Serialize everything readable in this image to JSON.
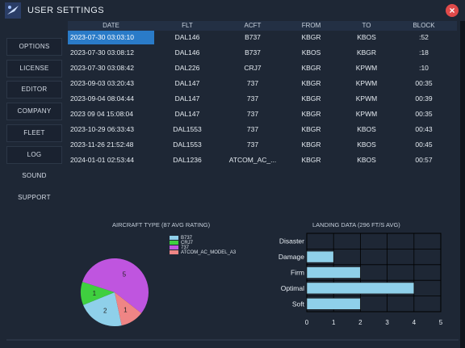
{
  "window": {
    "title": "USER SETTINGS",
    "close_label": "×"
  },
  "sidebar": {
    "items": [
      {
        "label": "OPTIONS"
      },
      {
        "label": "LICENSE"
      },
      {
        "label": "EDITOR"
      },
      {
        "label": "COMPANY"
      },
      {
        "label": "FLEET"
      },
      {
        "label": "LOG"
      },
      {
        "label": "SOUND"
      },
      {
        "label": "SUPPORT"
      }
    ]
  },
  "log_table": {
    "columns": [
      "DATE",
      "FLT",
      "ACFT",
      "FROM",
      "TO",
      "BLOCK"
    ],
    "rows": [
      [
        "2023-07-30 03:03:10",
        "DAL146",
        "B737",
        "KBGR",
        "KBOS",
        ":52"
      ],
      [
        "2023-07-30 03:08:12",
        "DAL146",
        "B737",
        "KBOS",
        "KBGR",
        ":18"
      ],
      [
        "2023-07-30 03:08:42",
        "DAL226",
        "CRJ7",
        "KBGR",
        "KPWM",
        ":10"
      ],
      [
        "2023-09-03 03:20:43",
        "DAL147",
        "737",
        "KBGR",
        "KPWM",
        "00:35"
      ],
      [
        "2023-09-04 08:04:44",
        "DAL147",
        "737",
        "KBGR",
        "KPWM",
        "00:39"
      ],
      [
        "2023 09 04 15:08:04",
        "DAL147",
        "737",
        "KBGR",
        "KPWM",
        "00:35"
      ],
      [
        "2023-10-29 06:33:43",
        "DAL1553",
        "737",
        "KBGR",
        "KBOS",
        "00:43"
      ],
      [
        "2023-11-26 21:52:48",
        "DAL1553",
        "737",
        "KBGR",
        "KBOS",
        "00:45"
      ],
      [
        "2024-01-01 02:53:44",
        "DAL1236",
        "ATCOM_AC_...",
        "KBGR",
        "KBOS",
        "00:57"
      ]
    ]
  },
  "colors": {
    "accent_selected": "#2a7bc8",
    "pie_b737": "#8fd0ea",
    "pie_crj7": "#3fcf3f",
    "pie_737": "#bf55df",
    "pie_atcom": "#ef8585",
    "bar_fill": "#8fd0ea",
    "close_red": "#e04a4a"
  },
  "chart_data": [
    {
      "type": "pie",
      "title": "AIRCRAFT TYPE (87 AVG RATING)",
      "labels": [
        "B737",
        "CRJ7",
        "737",
        "ATCOM_AC_MODEL_A3"
      ],
      "values": [
        2,
        1,
        5,
        1
      ],
      "slice_labels": [
        "2",
        "1",
        "5",
        "1"
      ]
    },
    {
      "type": "bar",
      "orientation": "horizontal",
      "title": "LANDING DATA (296 FT/S AVG)",
      "categories": [
        "Disaster",
        "Damage",
        "Firm",
        "Optimal",
        "Soft"
      ],
      "values": [
        0,
        1,
        2,
        4,
        2
      ],
      "xlim": [
        0,
        5
      ],
      "xticks": [
        "0",
        "1",
        "2",
        "3",
        "4",
        "5"
      ],
      "grid": true
    }
  ]
}
